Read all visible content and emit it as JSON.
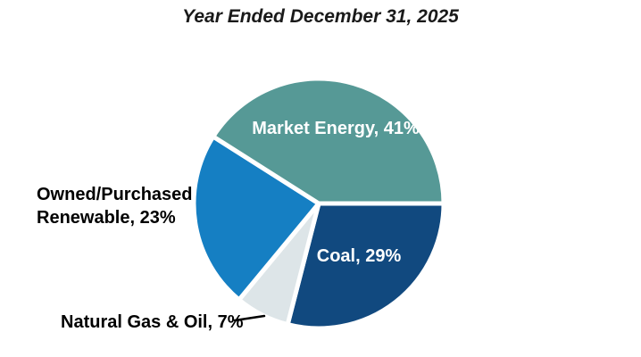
{
  "title": "Year Ended December 31, 2025",
  "background_color": "#ffffff",
  "chart_data": {
    "type": "pie",
    "title": "Year Ended December 31, 2025",
    "start_angle_deg": 0,
    "direction": "clockwise",
    "separator_color": "#ffffff",
    "legend": "none",
    "slices": [
      {
        "id": "coal",
        "label": "Coal",
        "value": 29,
        "unit": "%",
        "color": "#11497f",
        "display": "Coal, 29%",
        "label_placement": "inside",
        "label_color": "#ffffff"
      },
      {
        "id": "natural-gas-oil",
        "label": "Natural Gas & Oil",
        "value": 7,
        "unit": "%",
        "color": "#dde5e8",
        "display": "Natural Gas & Oil, 7%",
        "label_placement": "outside-with-leader-line",
        "label_color": "#000000"
      },
      {
        "id": "owned-purchased-renewable",
        "label": "Owned/Purchased Renewable",
        "value": 23,
        "unit": "%",
        "color": "#157fc3",
        "display": "Owned/Purchased Renewable, 23%",
        "label_placement": "outside",
        "label_color": "#000000"
      },
      {
        "id": "market-energy",
        "label": "Market Energy",
        "value": 41,
        "unit": "%",
        "color": "#569996",
        "display": "Market Energy, 41%",
        "label_placement": "inside",
        "label_color": "#ffffff"
      }
    ],
    "leader_line_color": "#000000"
  }
}
